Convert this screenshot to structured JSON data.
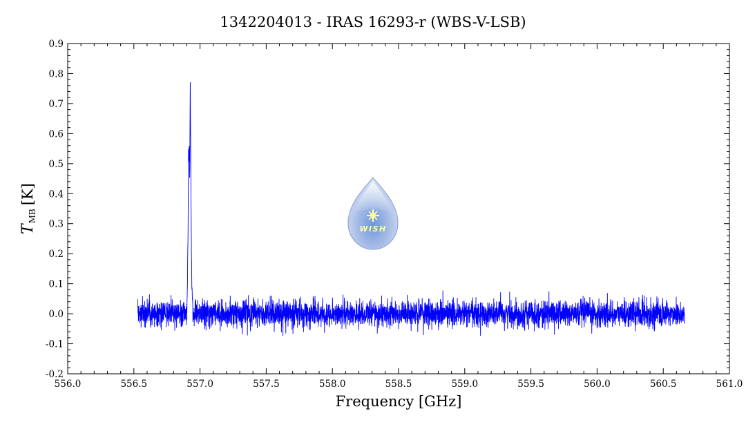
{
  "chart_data": {
    "type": "line",
    "title": "1342204013 - IRAS 16293-r (WBS-V-LSB)",
    "xlabel": "Frequency [GHz]",
    "ylabel": {
      "symbol": "T",
      "subscript": "MB",
      "unit": "[K]"
    },
    "xlim": [
      556.0,
      561.0
    ],
    "ylim": [
      -0.2,
      0.9
    ],
    "x_ticks": [
      "556.0",
      "556.5",
      "557.0",
      "557.5",
      "558.0",
      "558.5",
      "559.0",
      "559.5",
      "560.0",
      "560.5",
      "561.0"
    ],
    "y_ticks": [
      "-0.2",
      "-0.1",
      "0.0",
      "0.1",
      "0.2",
      "0.3",
      "0.4",
      "0.5",
      "0.6",
      "0.7",
      "0.8",
      "0.9"
    ],
    "grid": false,
    "series": [
      {
        "color": "#0000ff",
        "x_range": [
          556.53,
          560.66
        ],
        "noise_rms": 0.022,
        "noise_min": -0.09,
        "noise_max": 0.095,
        "peak": {
          "center": 556.935,
          "max": 0.79,
          "profile": [
            [
              556.9,
              0.0
            ],
            [
              556.905,
              0.1
            ],
            [
              556.91,
              0.3
            ],
            [
              556.913,
              0.55
            ],
            [
              556.916,
              0.5
            ],
            [
              556.918,
              0.57
            ],
            [
              556.922,
              0.45
            ],
            [
              556.926,
              0.79
            ],
            [
              556.93,
              0.49
            ],
            [
              556.934,
              0.25
            ],
            [
              556.938,
              0.1
            ],
            [
              556.945,
              0.02
            ]
          ]
        }
      }
    ]
  },
  "logo": {
    "text": "WISH"
  }
}
